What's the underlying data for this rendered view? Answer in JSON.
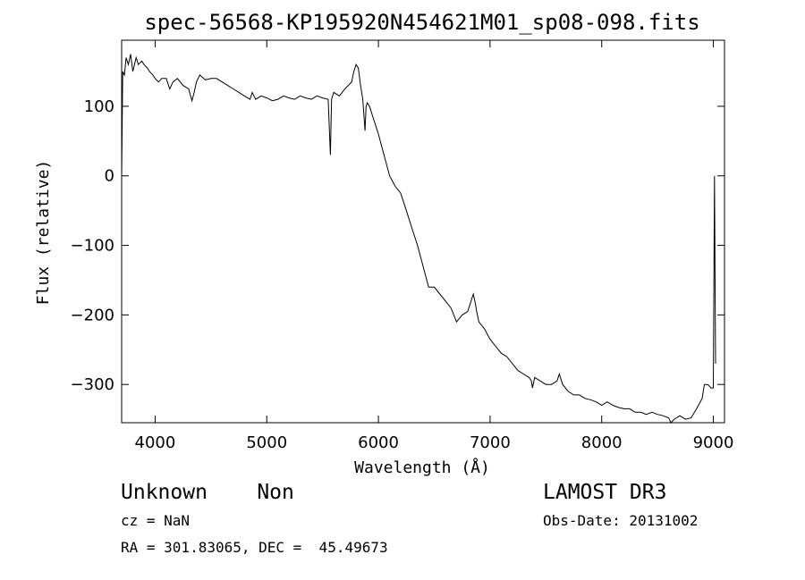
{
  "chart_data": {
    "type": "line",
    "title": "spec-56568-KP195920N454621M01_sp08-098.fits",
    "xlabel": "Wavelength (Å)",
    "ylabel": "Flux (relative)",
    "xlim": [
      3700,
      9100
    ],
    "ylim": [
      -355,
      195
    ],
    "xticks": [
      4000,
      5000,
      6000,
      7000,
      8000,
      9000
    ],
    "yticks": [
      100,
      0,
      -100,
      -200,
      -300
    ],
    "grid": false,
    "series": [
      {
        "x": [
          3700,
          3710,
          3725,
          3740,
          3760,
          3780,
          3800,
          3830,
          3850,
          3880,
          3900,
          3930,
          3950,
          3980,
          4000,
          4030,
          4060,
          4100,
          4130,
          4160,
          4200,
          4250,
          4300,
          4330,
          4350,
          4370,
          4400,
          4450,
          4500,
          4550,
          4600,
          4650,
          4700,
          4750,
          4800,
          4850,
          4870,
          4900,
          4950,
          5000,
          5050,
          5100,
          5150,
          5200,
          5250,
          5300,
          5350,
          5400,
          5450,
          5500,
          5550,
          5570,
          5580,
          5600,
          5650,
          5700,
          5730,
          5760,
          5780,
          5800,
          5820,
          5840,
          5860,
          5880,
          5890,
          5900,
          5920,
          5950,
          6000,
          6050,
          6100,
          6150,
          6200,
          6250,
          6300,
          6350,
          6400,
          6450,
          6500,
          6550,
          6600,
          6650,
          6700,
          6750,
          6800,
          6850,
          6870,
          6880,
          6900,
          6950,
          7000,
          7050,
          7100,
          7150,
          7200,
          7250,
          7300,
          7350,
          7370,
          7380,
          7400,
          7450,
          7500,
          7550,
          7600,
          7620,
          7650,
          7700,
          7750,
          7800,
          7850,
          7900,
          7950,
          8000,
          8050,
          8100,
          8150,
          8200,
          8250,
          8300,
          8350,
          8400,
          8450,
          8500,
          8550,
          8600,
          8620,
          8650,
          8700,
          8750,
          8800,
          8850,
          8900,
          8920,
          8950,
          8980,
          9000,
          9010,
          9020
        ],
        "y": [
          0,
          150,
          145,
          170,
          160,
          175,
          150,
          170,
          160,
          165,
          160,
          155,
          150,
          145,
          140,
          135,
          140,
          140,
          125,
          135,
          140,
          130,
          125,
          108,
          120,
          135,
          145,
          138,
          140,
          140,
          135,
          130,
          125,
          120,
          115,
          110,
          120,
          110,
          115,
          112,
          108,
          110,
          115,
          112,
          110,
          115,
          112,
          110,
          115,
          112,
          110,
          30,
          110,
          120,
          115,
          125,
          130,
          135,
          150,
          160,
          155,
          130,
          110,
          65,
          100,
          105,
          100,
          85,
          60,
          30,
          0,
          -15,
          -25,
          -50,
          -75,
          -100,
          -130,
          -160,
          -160,
          -170,
          -180,
          -190,
          -210,
          -200,
          -195,
          -170,
          -185,
          -195,
          -210,
          -220,
          -235,
          -245,
          -255,
          -260,
          -270,
          -280,
          -285,
          -290,
          -295,
          -305,
          -290,
          -295,
          -300,
          -300,
          -295,
          -285,
          -300,
          -310,
          -315,
          -315,
          -320,
          -322,
          -325,
          -330,
          -325,
          -330,
          -333,
          -335,
          -335,
          -340,
          -340,
          -343,
          -340,
          -343,
          -345,
          -348,
          -355,
          -350,
          -345,
          -350,
          -348,
          -335,
          -320,
          -300,
          -300,
          -305,
          -305,
          0,
          -270
        ]
      }
    ]
  },
  "info": {
    "object_line": "Unknown    Non",
    "survey": "LAMOST DR3",
    "cz": "cz = NaN",
    "obs_date": "Obs-Date: 20131002",
    "coords": "RA = 301.83065, DEC =  45.49673"
  }
}
